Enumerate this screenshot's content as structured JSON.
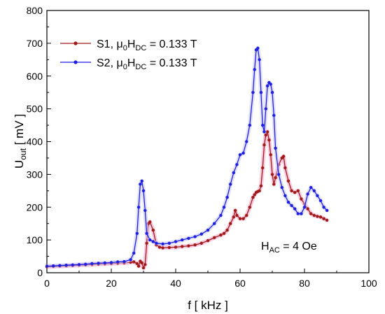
{
  "chart_data": {
    "type": "line",
    "xlabel": "f [ kHz ]",
    "ylabel": {
      "base": "U",
      "sub": "out",
      "rest": " [ mV ]"
    },
    "xlim": [
      0,
      100
    ],
    "ylim": [
      0,
      800
    ],
    "x_ticks": [
      0,
      20,
      40,
      60,
      80,
      100
    ],
    "y_ticks": [
      0,
      100,
      200,
      300,
      400,
      500,
      600,
      700,
      800
    ],
    "grid": false,
    "legend_position": "top-left",
    "annotation": {
      "base": "H",
      "sub": "AC",
      "rest": " = 4 Oe"
    },
    "series": [
      {
        "name": "S1, μ0HDC = 0.133 T",
        "legend_parts": {
          "a": "S1, μ",
          "a_sub": "0",
          "b": "H",
          "b_sub": "DC",
          "c": " = 0.133 T"
        },
        "color": "#a01a1a",
        "halo": "#f2a0c8",
        "x": [
          0,
          2,
          4,
          6,
          8,
          10,
          12,
          14,
          16,
          18,
          20,
          22,
          24,
          26,
          27,
          28,
          28.5,
          29,
          29.5,
          30,
          30.5,
          31,
          31.5,
          32,
          33,
          34,
          35,
          36,
          38,
          40,
          42,
          44,
          46,
          48,
          50,
          52,
          54,
          55,
          56,
          57,
          58,
          58.5,
          59,
          60,
          61,
          62,
          63,
          64,
          64.5,
          65,
          65.5,
          66,
          66.5,
          67,
          67.5,
          68,
          68.5,
          69,
          69.5,
          70,
          70.5,
          71,
          72,
          73,
          73.5,
          74,
          75,
          76,
          77,
          78,
          79,
          80,
          81,
          82,
          83,
          84,
          85,
          86,
          87
        ],
        "y": [
          18,
          19,
          20,
          21,
          22,
          23,
          24,
          25,
          26,
          27,
          28,
          29,
          30,
          32,
          33,
          28,
          20,
          35,
          30,
          15,
          25,
          90,
          150,
          155,
          130,
          85,
          78,
          76,
          77,
          78,
          80,
          82,
          85,
          90,
          98,
          107,
          115,
          120,
          130,
          150,
          170,
          190,
          175,
          165,
          165,
          175,
          200,
          230,
          238,
          245,
          248,
          250,
          265,
          320,
          390,
          420,
          430,
          405,
          360,
          300,
          270,
          290,
          330,
          350,
          355,
          320,
          280,
          250,
          245,
          250,
          225,
          210,
          195,
          180,
          175,
          172,
          170,
          165,
          160
        ]
      },
      {
        "name": "S2, μ0HDC = 0.133 T",
        "legend_parts": {
          "a": "S2, μ",
          "a_sub": "0",
          "b": "H",
          "b_sub": "DC",
          "c": " = 0.133 T"
        },
        "color": "#1f1fe0",
        "halo": "#c8c8ff",
        "x": [
          0,
          2,
          4,
          6,
          8,
          10,
          12,
          14,
          16,
          18,
          20,
          22,
          24,
          26,
          27,
          28,
          28.5,
          29,
          29.5,
          30,
          30.5,
          31,
          32,
          33,
          34,
          36,
          38,
          40,
          42,
          44,
          46,
          48,
          50,
          52,
          54,
          55,
          56,
          57,
          58,
          59,
          60,
          61,
          62,
          63,
          64,
          64.5,
          65,
          65.5,
          66,
          66.5,
          67,
          67.5,
          68,
          68.5,
          69,
          69.5,
          70,
          70.5,
          71,
          72,
          73,
          74,
          75,
          76,
          77,
          78,
          79,
          80,
          81,
          82,
          83,
          84,
          85,
          86,
          87
        ],
        "y": [
          20,
          21,
          22,
          23,
          24,
          25,
          26,
          28,
          29,
          30,
          31,
          33,
          34,
          40,
          60,
          120,
          200,
          270,
          280,
          250,
          190,
          120,
          100,
          95,
          90,
          88,
          90,
          95,
          100,
          105,
          110,
          118,
          130,
          150,
          175,
          200,
          230,
          270,
          305,
          330,
          360,
          365,
          400,
          450,
          550,
          620,
          680,
          685,
          650,
          550,
          450,
          430,
          500,
          570,
          580,
          575,
          550,
          480,
          380,
          300,
          260,
          235,
          215,
          205,
          195,
          180,
          180,
          200,
          240,
          260,
          250,
          235,
          220,
          200,
          190
        ]
      }
    ]
  }
}
